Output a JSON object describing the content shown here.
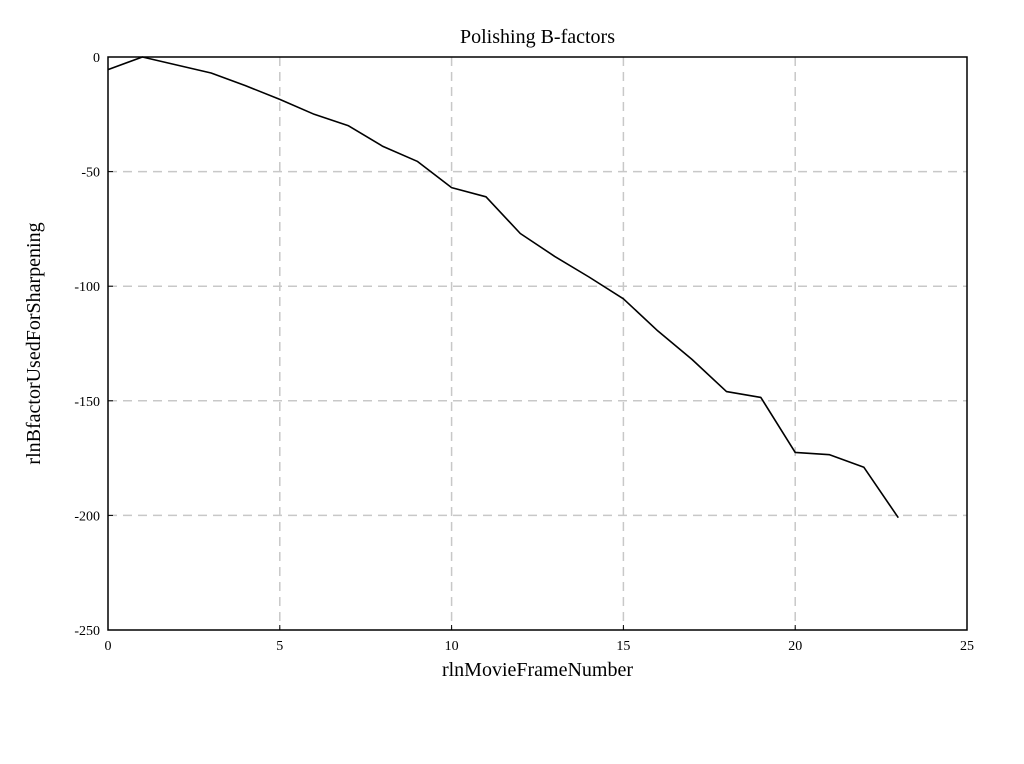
{
  "chart_data": {
    "type": "line",
    "title": "Polishing B-factors",
    "xlabel": "rlnMovieFrameNumber",
    "ylabel": "rlnBfactorUsedForSharpening",
    "xlim": [
      0,
      25
    ],
    "ylim": [
      -250,
      0
    ],
    "xticks": [
      "0",
      "5",
      "10",
      "15",
      "20",
      "25"
    ],
    "yticks": [
      "0",
      "-50",
      "-100",
      "-150",
      "-200",
      "-250"
    ],
    "grid": true,
    "series_color": "#000000",
    "grid_color": "#c8c8c8",
    "series": [
      {
        "x": [
          0,
          1,
          2,
          3,
          4,
          5,
          6,
          7,
          8,
          9,
          10,
          11,
          12,
          13,
          14,
          15,
          16,
          17,
          18,
          19,
          20,
          21,
          22,
          23
        ],
        "y": [
          -5.5,
          0,
          -3.5,
          -7,
          -12.5,
          -18.5,
          -25,
          -30,
          -39,
          -45.5,
          -57,
          -61,
          -77,
          -87,
          -96,
          -105.5,
          -119.5,
          -132,
          -146,
          -148.5,
          -172.5,
          -173.5,
          -179,
          -201
        ]
      }
    ]
  }
}
